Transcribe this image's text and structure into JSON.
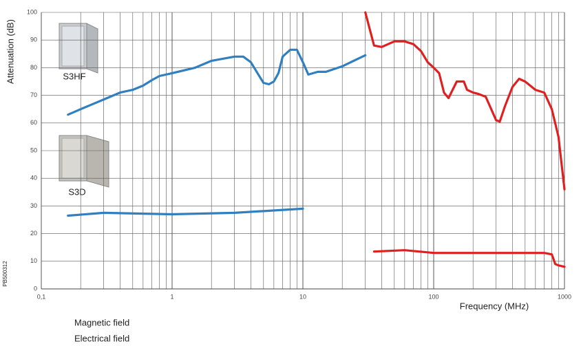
{
  "chart_data": {
    "type": "line",
    "xlabel": "Frequency (MHz)",
    "ylabel": "Attenuation (dB)",
    "xscale": "log",
    "xlim": [
      0.1,
      1000
    ],
    "ylim": [
      0,
      100
    ],
    "xticks": [
      {
        "value": 0.1,
        "label": "0,1"
      },
      1,
      10,
      100,
      1000
    ],
    "xminorticks": [
      0.2,
      0.3,
      0.4,
      0.5,
      0.6,
      0.7,
      0.8,
      0.9,
      2,
      3,
      4,
      5,
      6,
      7,
      8,
      9,
      20,
      30,
      40,
      50,
      60,
      70,
      80,
      90,
      200,
      300,
      400,
      500,
      600,
      700,
      800,
      900
    ],
    "yticks": [
      0,
      10,
      20,
      30,
      40,
      50,
      60,
      70,
      80,
      90,
      100
    ],
    "grid": true,
    "legend": [
      "Magnetic field",
      "Electrical field"
    ],
    "annotations": [
      "S3HF",
      "S3D",
      "PB500312"
    ],
    "series": [
      {
        "name": "S3HF",
        "color": "#2f7fc1",
        "x": [
          0.16,
          0.2,
          0.3,
          0.4,
          0.5,
          0.6,
          0.7,
          0.8,
          1,
          1.5,
          2,
          3,
          3.5,
          4,
          4.5,
          5,
          5.5,
          6,
          6.5,
          7,
          8,
          9,
          10,
          11,
          13,
          15,
          20,
          30
        ],
        "values": [
          63,
          65,
          68.5,
          71,
          72,
          73.5,
          75.5,
          77,
          78,
          80,
          82.5,
          84,
          84,
          82,
          78,
          74.5,
          74,
          75,
          78,
          84,
          86.5,
          86.5,
          82,
          77.5,
          78.5,
          78.5,
          80.5,
          84.5
        ]
      },
      {
        "name": "S3D",
        "color": "#2f7fc1",
        "x": [
          0.16,
          0.3,
          1,
          3,
          10
        ],
        "values": [
          26.5,
          27.5,
          27,
          27.5,
          29
        ]
      },
      {
        "name": "S3HF",
        "color": "#e02020",
        "x": [
          30,
          35,
          40,
          50,
          60,
          70,
          80,
          90,
          100,
          110,
          120,
          130,
          150,
          170,
          180,
          200,
          220,
          250,
          300,
          320,
          350,
          400,
          450,
          500,
          600,
          700,
          800,
          900,
          1000
        ],
        "values": [
          100,
          88,
          87.5,
          89.5,
          89.5,
          88.5,
          86,
          82,
          80,
          78,
          71,
          69,
          75,
          75,
          72,
          71,
          70.5,
          69.5,
          61,
          60.5,
          66,
          73,
          76,
          75,
          72,
          71,
          65,
          55,
          36
        ]
      },
      {
        "name": "S3D",
        "color": "#e02020",
        "x": [
          35,
          60,
          100,
          300,
          500,
          700,
          800,
          850,
          900,
          1000
        ],
        "values": [
          13.5,
          14,
          13,
          13,
          13,
          13,
          12.5,
          9,
          8.5,
          8
        ]
      }
    ]
  }
}
